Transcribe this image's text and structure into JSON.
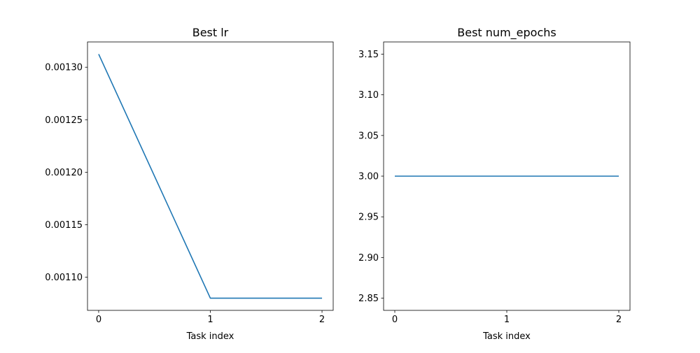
{
  "chart_data": [
    {
      "type": "line",
      "title": "Best lr",
      "xlabel": "Task index",
      "ylabel": "",
      "x": [
        0,
        1,
        2
      ],
      "series": [
        {
          "values": [
            0.0013125,
            0.00108,
            0.00108
          ],
          "color": "#1f77b4"
        }
      ],
      "xlim": [
        -0.1,
        2.1
      ],
      "ylim": [
        0.0010684,
        0.0013241
      ],
      "xticks": [
        0,
        1,
        2
      ],
      "xtick_labels": [
        "0",
        "1",
        "2"
      ],
      "yticks": [
        0.0011,
        0.00115,
        0.0012,
        0.00125,
        0.0013
      ],
      "ytick_labels": [
        "0.00110",
        "0.00115",
        "0.00120",
        "0.00125",
        "0.00130"
      ],
      "grid": false,
      "legend": "none"
    },
    {
      "type": "line",
      "title": "Best num_epochs",
      "xlabel": "Task index",
      "ylabel": "",
      "x": [
        0,
        1,
        2
      ],
      "series": [
        {
          "values": [
            3,
            3,
            3
          ],
          "color": "#1f77b4"
        }
      ],
      "xlim": [
        -0.1,
        2.1
      ],
      "ylim": [
        2.835,
        3.165
      ],
      "xticks": [
        0,
        1,
        2
      ],
      "xtick_labels": [
        "0",
        "1",
        "2"
      ],
      "yticks": [
        2.85,
        2.9,
        2.95,
        3.0,
        3.05,
        3.1,
        3.15
      ],
      "ytick_labels": [
        "2.85",
        "2.90",
        "2.95",
        "3.00",
        "3.05",
        "3.10",
        "3.15"
      ],
      "grid": false,
      "legend": "none"
    }
  ]
}
